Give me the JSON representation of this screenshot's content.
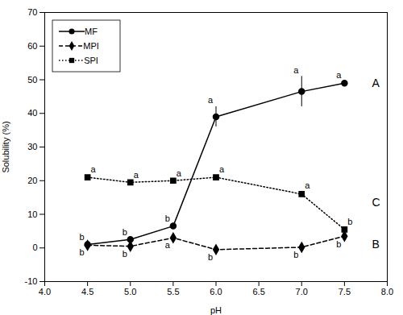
{
  "chart_data": {
    "type": "line",
    "xlabel": "pH",
    "ylabel": "Solubility (%)",
    "color": "black",
    "x": [
      4.5,
      5.0,
      5.5,
      6.0,
      7.0,
      7.5
    ],
    "series": [
      {
        "name": "MF",
        "values": [
          1.0,
          2.5,
          6.5,
          39.0,
          46.5,
          49.0
        ],
        "errors": [
          0.4,
          0.4,
          0.4,
          3.0,
          4.5,
          0.6
        ],
        "letters": [
          "b",
          "b",
          "b",
          "a",
          "a",
          "a"
        ],
        "marker": "circle",
        "line_style": "solid"
      },
      {
        "name": "MPI",
        "values": [
          0.8,
          0.5,
          3.0,
          -0.5,
          0.2,
          3.5
        ],
        "errors": [
          0.3,
          0.3,
          0.3,
          0.3,
          0.4,
          0.4
        ],
        "letters": [
          "b",
          "b",
          "a",
          "b",
          "b",
          "b"
        ],
        "marker": "diamond",
        "line_style": "dashed"
      },
      {
        "name": "SPI",
        "values": [
          21.0,
          19.5,
          20.0,
          21.0,
          16.0,
          5.5
        ],
        "errors": [
          0.4,
          0.4,
          0.4,
          0.4,
          0.6,
          0.4
        ],
        "letters": [
          "a",
          "a",
          "a",
          "a",
          "a",
          "b"
        ],
        "marker": "square",
        "line_style": "dotted"
      }
    ],
    "annotations": [
      {
        "x": 7.82,
        "y": 49.0,
        "text": "A"
      },
      {
        "x": 7.82,
        "y": 1.0,
        "text": "B"
      },
      {
        "x": 7.82,
        "y": 13.5,
        "text": "C"
      }
    ],
    "xlim": [
      4.0,
      8.0
    ],
    "ylim": [
      -10,
      70
    ],
    "xticks": [
      {
        "value": 4.0,
        "label": "4.0"
      },
      4.5,
      {
        "value": 5.0,
        "label": "5.0"
      },
      5.5,
      {
        "value": 6.0,
        "label": "6.0"
      },
      6.5,
      {
        "value": 7.0,
        "label": "7.0"
      },
      7.5,
      {
        "value": 8.0,
        "label": "8.0"
      }
    ],
    "yticks": [
      -10,
      0,
      10,
      20,
      30,
      40,
      50,
      60,
      70
    ],
    "legend": "upper left"
  }
}
